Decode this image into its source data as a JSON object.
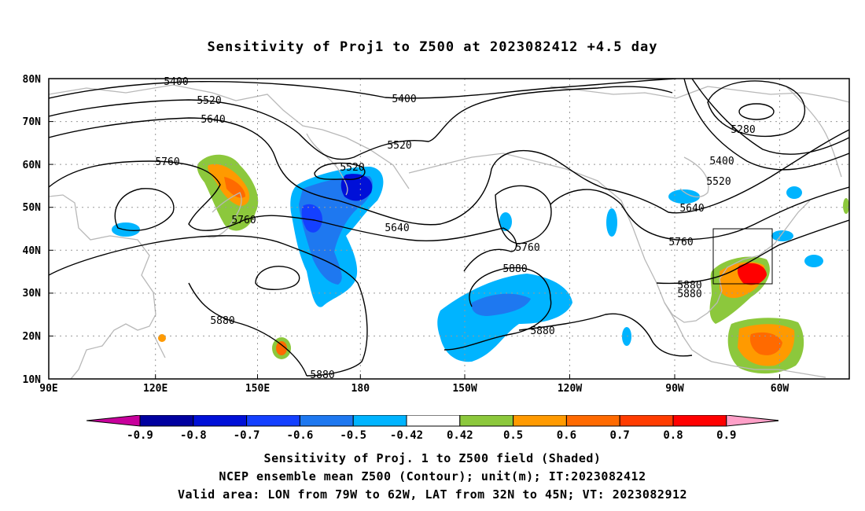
{
  "title": "Sensitivity of Proj1 to Z500 at 2023082412 +4.5 day",
  "map": {
    "lat_ticks": [
      "80N",
      "70N",
      "60N",
      "50N",
      "40N",
      "30N",
      "20N",
      "10N"
    ],
    "lon_ticks": [
      "90E",
      "120E",
      "150E",
      "180",
      "150W",
      "120W",
      "90W",
      "60W"
    ],
    "contour_labels": [
      "5400",
      "5520",
      "5640",
      "5760",
      "5880",
      "5400",
      "5520",
      "5280",
      "5400",
      "5520",
      "5640",
      "5760",
      "5880",
      "5880",
      "5640",
      "5760",
      "5520",
      "5760",
      "5880",
      "5880",
      "5880"
    ],
    "valid_box": {
      "lon_from": "79W",
      "lon_to": "62W",
      "lat_from": "32N",
      "lat_to": "45N"
    }
  },
  "colorbar": {
    "labels": [
      "-0.9",
      "-0.8",
      "-0.7",
      "-0.6",
      "-0.5",
      "-0.42",
      "0.42",
      "0.5",
      "0.6",
      "0.7",
      "0.8",
      "0.9"
    ],
    "colors": [
      "#0000a0",
      "#0010d8",
      "#1440ff",
      "#1e78f0",
      "#00b4ff",
      "#ffffff",
      "#8cc83c",
      "#ff9a00",
      "#ff6a00",
      "#ff3c00",
      "#ff0000"
    ],
    "under_color": "#c8009c",
    "over_color": "#ffa0c8"
  },
  "caption": {
    "line1": "Sensitivity of Proj. 1 to Z500 field (Shaded)",
    "line2": "NCEP ensemble mean Z500 (Contour); unit(m); IT:2023082412",
    "line3": "Valid area: LON from 79W to 62W, LAT from 32N to 45N; VT: 2023082912"
  }
}
